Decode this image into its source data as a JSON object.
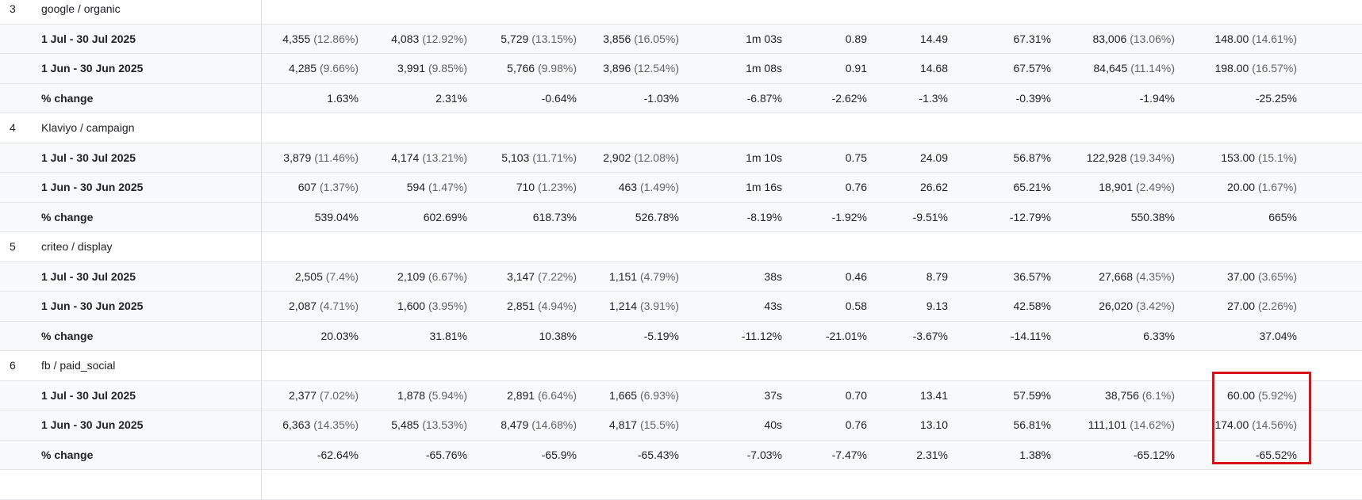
{
  "groups": [
    {
      "index": "3",
      "name": "google / organic",
      "rows": [
        {
          "label": "1 Jul - 30 Jul 2025",
          "cells": [
            [
              "4,355",
              "(12.86%)"
            ],
            [
              "4,083",
              "(12.92%)"
            ],
            [
              "5,729",
              "(13.15%)"
            ],
            [
              "3,856",
              "(16.05%)"
            ],
            [
              "1m 03s",
              ""
            ],
            [
              "0.89",
              ""
            ],
            [
              "14.49",
              ""
            ],
            [
              "67.31%",
              ""
            ],
            [
              "83,006",
              "(13.06%)"
            ],
            [
              "148.00",
              "(14.61%)"
            ]
          ]
        },
        {
          "label": "1 Jun - 30 Jun 2025",
          "cells": [
            [
              "4,285",
              "(9.66%)"
            ],
            [
              "3,991",
              "(9.85%)"
            ],
            [
              "5,766",
              "(9.98%)"
            ],
            [
              "3,896",
              "(12.54%)"
            ],
            [
              "1m 08s",
              ""
            ],
            [
              "0.91",
              ""
            ],
            [
              "14.68",
              ""
            ],
            [
              "67.57%",
              ""
            ],
            [
              "84,645",
              "(11.14%)"
            ],
            [
              "198.00",
              "(16.57%)"
            ]
          ]
        },
        {
          "label": "% change",
          "cells": [
            [
              "1.63%",
              ""
            ],
            [
              "2.31%",
              ""
            ],
            [
              "-0.64%",
              ""
            ],
            [
              "-1.03%",
              ""
            ],
            [
              "-6.87%",
              ""
            ],
            [
              "-2.62%",
              ""
            ],
            [
              "-1.3%",
              ""
            ],
            [
              "-0.39%",
              ""
            ],
            [
              "-1.94%",
              ""
            ],
            [
              "-25.25%",
              ""
            ]
          ]
        }
      ]
    },
    {
      "index": "4",
      "name": "Klaviyo / campaign",
      "rows": [
        {
          "label": "1 Jul - 30 Jul 2025",
          "cells": [
            [
              "3,879",
              "(11.46%)"
            ],
            [
              "4,174",
              "(13.21%)"
            ],
            [
              "5,103",
              "(11.71%)"
            ],
            [
              "2,902",
              "(12.08%)"
            ],
            [
              "1m 10s",
              ""
            ],
            [
              "0.75",
              ""
            ],
            [
              "24.09",
              ""
            ],
            [
              "56.87%",
              ""
            ],
            [
              "122,928",
              "(19.34%)"
            ],
            [
              "153.00",
              "(15.1%)"
            ]
          ]
        },
        {
          "label": "1 Jun - 30 Jun 2025",
          "cells": [
            [
              "607",
              "(1.37%)"
            ],
            [
              "594",
              "(1.47%)"
            ],
            [
              "710",
              "(1.23%)"
            ],
            [
              "463",
              "(1.49%)"
            ],
            [
              "1m 16s",
              ""
            ],
            [
              "0.76",
              ""
            ],
            [
              "26.62",
              ""
            ],
            [
              "65.21%",
              ""
            ],
            [
              "18,901",
              "(2.49%)"
            ],
            [
              "20.00",
              "(1.67%)"
            ]
          ]
        },
        {
          "label": "% change",
          "cells": [
            [
              "539.04%",
              ""
            ],
            [
              "602.69%",
              ""
            ],
            [
              "618.73%",
              ""
            ],
            [
              "526.78%",
              ""
            ],
            [
              "-8.19%",
              ""
            ],
            [
              "-1.92%",
              ""
            ],
            [
              "-9.51%",
              ""
            ],
            [
              "-12.79%",
              ""
            ],
            [
              "550.38%",
              ""
            ],
            [
              "665%",
              ""
            ]
          ]
        }
      ]
    },
    {
      "index": "5",
      "name": "criteo / display",
      "rows": [
        {
          "label": "1 Jul - 30 Jul 2025",
          "cells": [
            [
              "2,505",
              "(7.4%)"
            ],
            [
              "2,109",
              "(6.67%)"
            ],
            [
              "3,147",
              "(7.22%)"
            ],
            [
              "1,151",
              "(4.79%)"
            ],
            [
              "38s",
              ""
            ],
            [
              "0.46",
              ""
            ],
            [
              "8.79",
              ""
            ],
            [
              "36.57%",
              ""
            ],
            [
              "27,668",
              "(4.35%)"
            ],
            [
              "37.00",
              "(3.65%)"
            ]
          ]
        },
        {
          "label": "1 Jun - 30 Jun 2025",
          "cells": [
            [
              "2,087",
              "(4.71%)"
            ],
            [
              "1,600",
              "(3.95%)"
            ],
            [
              "2,851",
              "(4.94%)"
            ],
            [
              "1,214",
              "(3.91%)"
            ],
            [
              "43s",
              ""
            ],
            [
              "0.58",
              ""
            ],
            [
              "9.13",
              ""
            ],
            [
              "42.58%",
              ""
            ],
            [
              "26,020",
              "(3.42%)"
            ],
            [
              "27.00",
              "(2.26%)"
            ]
          ]
        },
        {
          "label": "% change",
          "cells": [
            [
              "20.03%",
              ""
            ],
            [
              "31.81%",
              ""
            ],
            [
              "10.38%",
              ""
            ],
            [
              "-5.19%",
              ""
            ],
            [
              "-11.12%",
              ""
            ],
            [
              "-21.01%",
              ""
            ],
            [
              "-3.67%",
              ""
            ],
            [
              "-14.11%",
              ""
            ],
            [
              "6.33%",
              ""
            ],
            [
              "37.04%",
              ""
            ]
          ]
        }
      ]
    },
    {
      "index": "6",
      "name": "fb / paid_social",
      "rows": [
        {
          "label": "1 Jul - 30 Jul 2025",
          "cells": [
            [
              "2,377",
              "(7.02%)"
            ],
            [
              "1,878",
              "(5.94%)"
            ],
            [
              "2,891",
              "(6.64%)"
            ],
            [
              "1,665",
              "(6.93%)"
            ],
            [
              "37s",
              ""
            ],
            [
              "0.70",
              ""
            ],
            [
              "13.41",
              ""
            ],
            [
              "57.59%",
              ""
            ],
            [
              "38,756",
              "(6.1%)"
            ],
            [
              "60.00",
              "(5.92%)"
            ]
          ]
        },
        {
          "label": "1 Jun - 30 Jun 2025",
          "cells": [
            [
              "6,363",
              "(14.35%)"
            ],
            [
              "5,485",
              "(13.53%)"
            ],
            [
              "8,479",
              "(14.68%)"
            ],
            [
              "4,817",
              "(15.5%)"
            ],
            [
              "40s",
              ""
            ],
            [
              "0.76",
              ""
            ],
            [
              "13.10",
              ""
            ],
            [
              "56.81%",
              ""
            ],
            [
              "111,101",
              "(14.62%)"
            ],
            [
              "174.00",
              "(14.56%)"
            ]
          ]
        },
        {
          "label": "% change",
          "cells": [
            [
              "-62.64%",
              ""
            ],
            [
              "-65.76%",
              ""
            ],
            [
              "-65.9%",
              ""
            ],
            [
              "-65.43%",
              ""
            ],
            [
              "-7.03%",
              ""
            ],
            [
              "-7.47%",
              ""
            ],
            [
              "2.31%",
              ""
            ],
            [
              "1.38%",
              ""
            ],
            [
              "-65.12%",
              ""
            ],
            [
              "-65.52%",
              ""
            ]
          ]
        }
      ]
    }
  ],
  "highlight_color": "#d8121a"
}
